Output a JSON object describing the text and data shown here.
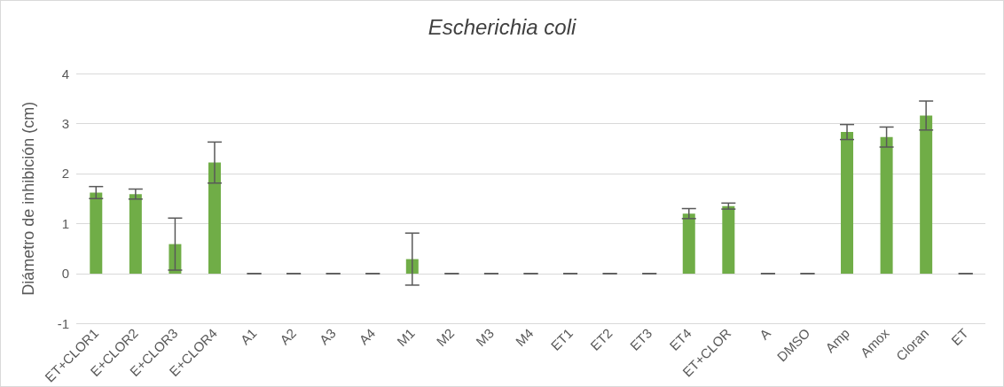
{
  "chart_data": {
    "type": "bar",
    "title": "Escherichia coli",
    "ylabel": "Diámetro de inhibición (cm)",
    "categories": [
      "ET+CLOR1",
      "E+CLOR2",
      "E+CLOR3",
      "E+CLOR4",
      "A1",
      "A2",
      "A3",
      "A4",
      "M1",
      "M2",
      "M3",
      "M4",
      "ET1",
      "ET2",
      "ET3",
      "ET4",
      "ET+CLOR",
      "A",
      "DMSO",
      "Amp",
      "Amox",
      "Cloran",
      "ET"
    ],
    "values": [
      1.62,
      1.59,
      0.59,
      2.22,
      0,
      0,
      0,
      0,
      0.29,
      0,
      0,
      0,
      0,
      0,
      0,
      1.2,
      1.35,
      0,
      0,
      2.83,
      2.73,
      3.16,
      0
    ],
    "errors": [
      0.12,
      0.1,
      0.52,
      0.41,
      0,
      0,
      0,
      0,
      0.52,
      0,
      0,
      0,
      0,
      0,
      0,
      0.1,
      0.06,
      0,
      0,
      0.15,
      0.2,
      0.29,
      0
    ],
    "color": "#70ad47",
    "ylim": [
      -1,
      4
    ],
    "yticks": [
      -1,
      0,
      1,
      2,
      3,
      4
    ],
    "grid": "y"
  }
}
